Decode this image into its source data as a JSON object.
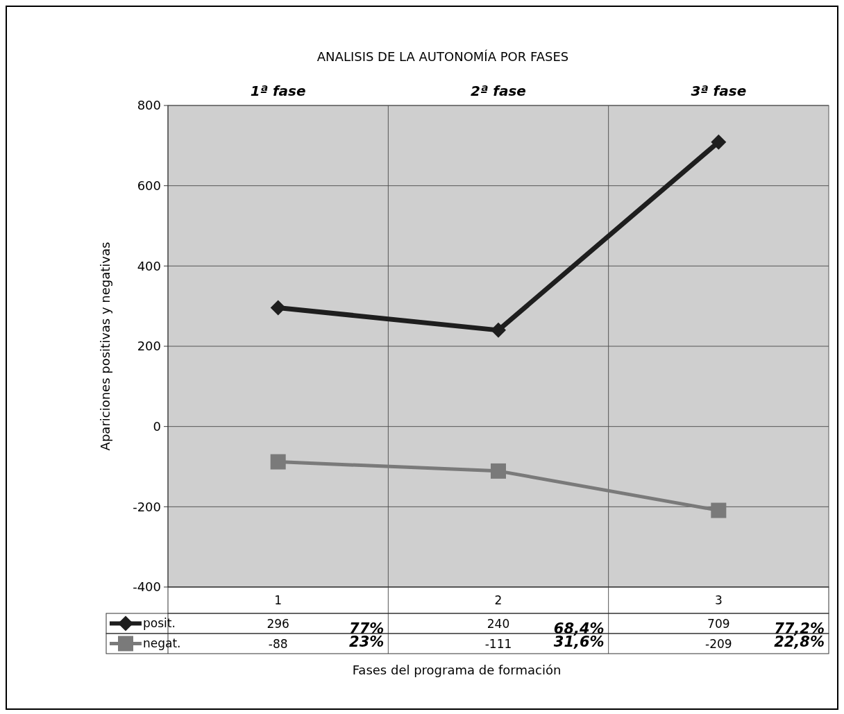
{
  "chart_data": {
    "type": "line",
    "title": "ANALISIS DE LA AUTONOMÍA POR FASES",
    "xlabel": "Fases del programa de formación",
    "ylabel": "Apariciones positivas y negativas",
    "categories": [
      "1",
      "2",
      "3"
    ],
    "series": [
      {
        "name": "posit.",
        "color": "#1e1e1e",
        "values": [
          296,
          240,
          709
        ],
        "marker": "diamond"
      },
      {
        "name": "negat.",
        "color": "#7a7a7a",
        "values": [
          -88,
          -111,
          -209
        ],
        "marker": "square"
      }
    ],
    "ylim": [
      -400,
      800
    ],
    "yticks": [
      -400,
      -200,
      0,
      200,
      400,
      600,
      800
    ],
    "grid": true,
    "legend": "bottom",
    "data_labels": true,
    "annotations": [
      "1ª fase",
      "2ª fase",
      "3ª fase",
      "77%",
      "23%",
      "68,4%",
      "31,6%",
      "77,2%",
      "22,8%"
    ]
  }
}
